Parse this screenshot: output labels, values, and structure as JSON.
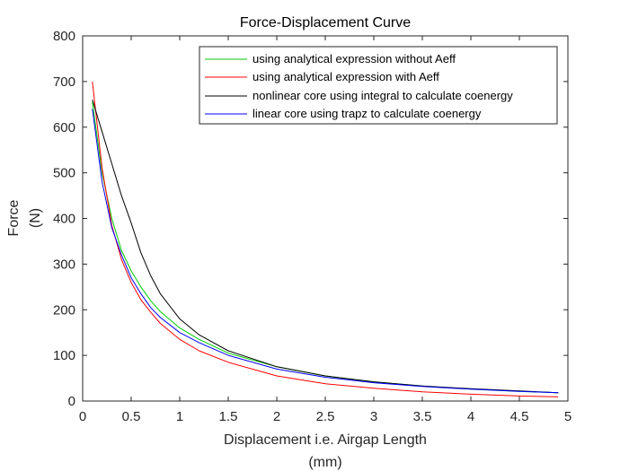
{
  "chart_data": {
    "type": "line",
    "title": "Force-Displacement Curve",
    "xlabel_line1": "Displacement i.e. Airgap Length",
    "xlabel_line2": "(mm)",
    "ylabel_line1": "Force",
    "ylabel_line2": "(N)",
    "xlim": [
      0,
      5
    ],
    "ylim": [
      0,
      800
    ],
    "xticks": [
      "0",
      "0.5",
      "1",
      "1.5",
      "2",
      "2.5",
      "3",
      "3.5",
      "4",
      "4.5",
      "5"
    ],
    "yticks": [
      "0",
      "100",
      "200",
      "300",
      "400",
      "500",
      "600",
      "700",
      "800"
    ],
    "grid": false,
    "legend_position": "top-right",
    "series": [
      {
        "name": "using analytical expression without Aeff",
        "color": "#00cc00",
        "x": [
          0.1,
          0.2,
          0.3,
          0.4,
          0.5,
          0.6,
          0.7,
          0.8,
          1.0,
          1.2,
          1.5,
          2.0,
          2.5,
          3.0,
          3.5,
          4.0,
          4.5,
          4.9
        ],
        "y": [
          655,
          500,
          400,
          330,
          285,
          250,
          220,
          196,
          160,
          135,
          105,
          75,
          55,
          42,
          33,
          26,
          21,
          18
        ]
      },
      {
        "name": "using analytical expression with Aeff",
        "color": "#ff0000",
        "x": [
          0.1,
          0.2,
          0.3,
          0.4,
          0.5,
          0.6,
          0.7,
          0.8,
          1.0,
          1.2,
          1.5,
          2.0,
          2.5,
          3.0,
          3.5,
          4.0,
          4.5,
          4.9
        ],
        "y": [
          700,
          510,
          385,
          310,
          260,
          222,
          195,
          170,
          135,
          110,
          85,
          55,
          38,
          28,
          20,
          15,
          11,
          9
        ]
      },
      {
        "name": "nonlinear core using integral to calculate coenergy",
        "color": "#000000",
        "x": [
          0.1,
          0.2,
          0.3,
          0.4,
          0.5,
          0.6,
          0.7,
          0.8,
          1.0,
          1.2,
          1.5,
          2.0,
          2.5,
          3.0,
          3.5,
          4.0,
          4.5,
          4.9
        ],
        "y": [
          660,
          590,
          520,
          450,
          390,
          325,
          275,
          235,
          180,
          145,
          110,
          75,
          55,
          42,
          33,
          27,
          22,
          18
        ]
      },
      {
        "name": "linear core using trapz to calculate coenergy",
        "color": "#0000ff",
        "x": [
          0.1,
          0.2,
          0.3,
          0.4,
          0.5,
          0.6,
          0.7,
          0.8,
          1.0,
          1.2,
          1.5,
          2.0,
          2.5,
          3.0,
          3.5,
          4.0,
          4.5,
          4.9
        ],
        "y": [
          640,
          480,
          380,
          320,
          270,
          235,
          205,
          183,
          150,
          128,
          100,
          70,
          52,
          40,
          32,
          26,
          21,
          18
        ]
      }
    ]
  }
}
